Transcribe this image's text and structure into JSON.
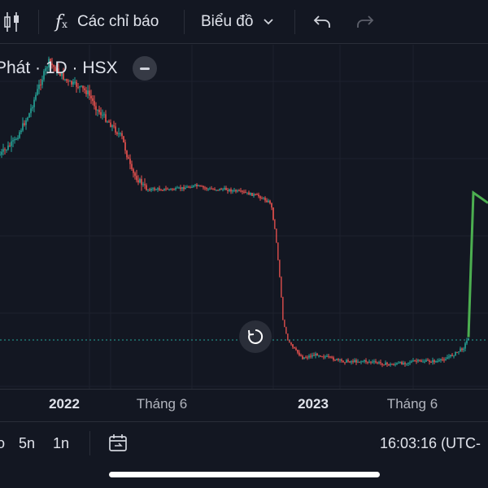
{
  "toolbar": {
    "indicators_label": "Các chỉ báo",
    "chart_type_label": "Biểu đồ",
    "icons": [
      "candles-icon",
      "fx-icon",
      "chevron-down-icon",
      "undo-icon",
      "redo-icon"
    ]
  },
  "symbol": {
    "label": "Phát · 1D · HSX"
  },
  "time_axis": {
    "ticks": [
      "2022",
      "Tháng 6",
      "2023",
      "Tháng 6"
    ]
  },
  "bottom_bar": {
    "ranges": [
      "o",
      "5n",
      "1n"
    ],
    "clock": "16:03:16 (UTC-"
  },
  "colors": {
    "up": "#26a69a",
    "down": "#ef5350",
    "projection": "#4caf50",
    "background": "#131722",
    "grid": "#1e222d"
  },
  "chart_data": {
    "type": "candlestick",
    "title": "",
    "xlabel": "",
    "ylabel": "",
    "x_ticks": [
      "2022",
      "Tháng 6",
      "2023",
      "Tháng 6"
    ],
    "price_path_description": "",
    "series": [
      {
        "x": [
          0,
          0.03,
          0.06,
          0.08,
          0.1,
          0.12,
          0.14,
          0.16,
          0.18,
          0.2,
          0.22,
          0.25,
          0.27,
          0.3,
          0.33,
          0.36,
          0.4,
          0.43,
          0.46,
          0.5,
          0.53,
          0.555,
          0.565,
          0.575,
          0.58,
          0.59,
          0.6,
          0.62,
          0.65,
          0.7,
          0.75,
          0.8,
          0.85,
          0.9,
          0.93,
          0.95,
          0.96
        ],
        "y": [
          0.32,
          0.28,
          0.2,
          0.12,
          0.05,
          0.08,
          0.11,
          0.12,
          0.14,
          0.19,
          0.22,
          0.27,
          0.37,
          0.42,
          0.42,
          0.42,
          0.41,
          0.42,
          0.42,
          0.43,
          0.44,
          0.46,
          0.55,
          0.7,
          0.8,
          0.86,
          0.88,
          0.91,
          0.9,
          0.92,
          0.92,
          0.93,
          0.92,
          0.92,
          0.9,
          0.88,
          0.85
        ]
      }
    ],
    "projection": {
      "x": [
        0.96,
        0.97,
        1.0
      ],
      "y": [
        0.85,
        0.43,
        0.46
      ]
    }
  }
}
